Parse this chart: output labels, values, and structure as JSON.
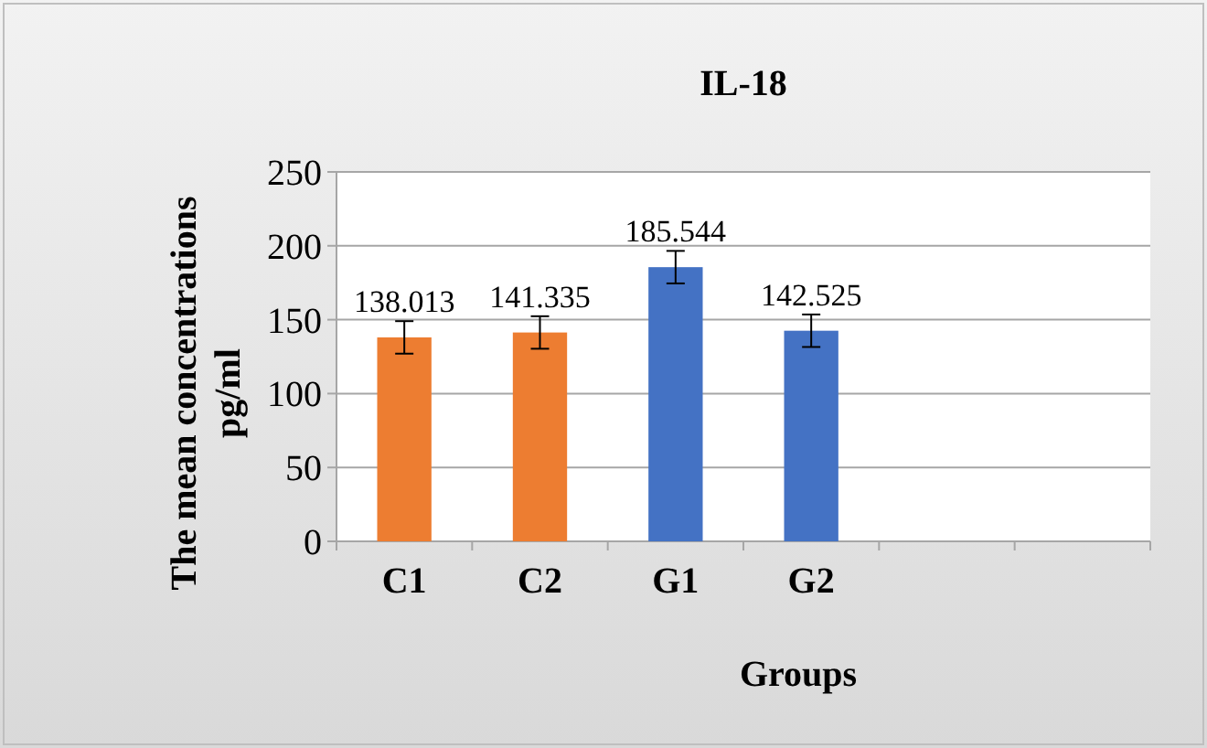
{
  "chart_data": {
    "type": "bar",
    "title": "IL-18",
    "xlabel": "Groups",
    "ylabel": "The mean concentrations\npg/ml",
    "categories": [
      "C1",
      "C2",
      "G1",
      "G2",
      null,
      null
    ],
    "values": [
      138.013,
      141.335,
      185.544,
      142.525,
      null,
      null
    ],
    "colors": [
      "#ed7d31",
      "#ed7d31",
      "#4472c4",
      "#4472c4",
      null,
      null
    ],
    "errors": [
      11,
      11,
      11,
      11,
      null,
      null
    ],
    "data_labels": true,
    "ylim": [
      0,
      250
    ],
    "yticks": [
      0,
      50,
      100,
      150,
      200,
      250
    ],
    "grid": "y"
  }
}
